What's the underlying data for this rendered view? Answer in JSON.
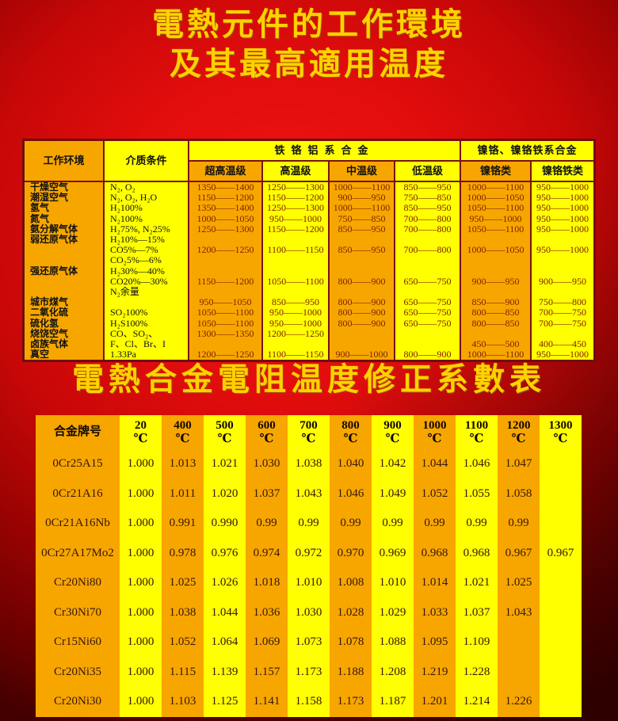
{
  "titles": {
    "line1": "電熱元件的工作環境",
    "line2": "及其最高適用温度",
    "second": "電熱合金電阻温度修正系數表"
  },
  "colors": {
    "background_red": "#d40c0c",
    "cell_orange": "#f7a600",
    "cell_yellow": "#ffff00",
    "border_maroon": "#7a1212",
    "value_text": "#7e2300",
    "title_gold": "#ffd200"
  },
  "env_table": {
    "header": {
      "work_env": "工作环境",
      "medium": "介质条件",
      "group1": "铁铬铝系合金",
      "group2": "镍铬、镍铬铁系合金",
      "subheaders": [
        "超高温级",
        "高温级",
        "中温级",
        "低温级",
        "镍铬类",
        "镍铬铁类"
      ]
    },
    "rows": [
      {
        "env": "干燥空气",
        "medium": [
          "N₂, O₂"
        ],
        "values": [
          "1350——1400",
          "1250——1300",
          "1000——1100",
          "850——950",
          "1000——1100",
          "950——1000"
        ]
      },
      {
        "env": "潮湿空气",
        "medium": [
          "N₂, O₂, H₂O"
        ],
        "values": [
          "1150——1200",
          "1150——1200",
          "900——950",
          "750——850",
          "1000——1050",
          "950——1000"
        ]
      },
      {
        "env": "氢气",
        "medium": [
          "H₂100%"
        ],
        "values": [
          "1350——1400",
          "1250——1300",
          "1000——1100",
          "850——950",
          "1050——1100",
          "950——1000"
        ]
      },
      {
        "env": "氮气",
        "medium": [
          "N₂100%"
        ],
        "values": [
          "1000——1050",
          "950——1000",
          "750——850",
          "700——800",
          "950——1000",
          "950——1000"
        ]
      },
      {
        "env": "氨分解气体",
        "medium": [
          "H₂75%, N₂25%"
        ],
        "values": [
          "1250——1300",
          "1150——1200",
          "850——950",
          "700——800",
          "1050——1100",
          "950——1000"
        ]
      },
      {
        "env": "弱还原气体",
        "medium": [
          "H₂10%—15%",
          "CO5%—7%"
        ],
        "values": [
          "1200——1250",
          "1100——1150",
          "850——950",
          "700——800",
          "1000——1050",
          "950——1000"
        ]
      },
      {
        "env": "强还原气体",
        "medium": [
          "CO₂5%—6%",
          "H₂30%—40%",
          "CO20%—30%",
          "N₂余量"
        ],
        "values": [
          "1150——1200",
          "1050——1100",
          "800——900",
          "650——750",
          "900——950",
          "900——950"
        ]
      },
      {
        "env": "城市煤气",
        "medium": [
          ""
        ],
        "values": [
          "950——1050",
          "850——950",
          "800——900",
          "650——750",
          "850——900",
          "750——800"
        ]
      },
      {
        "env": "二氧化硫",
        "medium": [
          "SO₂100%"
        ],
        "values": [
          "1050——1100",
          "950——1000",
          "800——900",
          "650——750",
          "800——850",
          "700——750"
        ]
      },
      {
        "env": "硫化氢",
        "medium": [
          "H₂S100%"
        ],
        "values": [
          "1050——1100",
          "950——1000",
          "800——900",
          "650——750",
          "800——850",
          "700——750"
        ]
      },
      {
        "env": "烧饶空气",
        "medium": [
          "CO、SO₂、Cl₂……"
        ],
        "values": [
          "1300——1350",
          "1200——1250",
          "",
          "",
          "",
          ""
        ]
      },
      {
        "env": "卤族气体",
        "medium": [
          "F、Cl、Br、I"
        ],
        "values": [
          "",
          "",
          "",
          "",
          "450——500",
          "400——450"
        ]
      },
      {
        "env": "真空",
        "medium": [
          "1.33Pa"
        ],
        "values": [
          "1200——1250",
          "1100——1150",
          "900——1000",
          "800——900",
          "1000——1100",
          "950——1000"
        ]
      }
    ]
  },
  "coeff_table": {
    "alloy_header": "合金牌号",
    "deg_symbol": "℃",
    "temps": [
      "20",
      "400",
      "500",
      "600",
      "700",
      "800",
      "900",
      "1000",
      "1100",
      "1200",
      "1300"
    ],
    "rows": [
      {
        "alloy": "0Cr25A15",
        "values": [
          "1.000",
          "1.013",
          "1.021",
          "1.030",
          "1.038",
          "1.040",
          "1.042",
          "1.044",
          "1.046",
          "1.047",
          ""
        ]
      },
      {
        "alloy": "0Cr21A16",
        "values": [
          "1.000",
          "1.011",
          "1.020",
          "1.037",
          "1.043",
          "1.046",
          "1.049",
          "1.052",
          "1.055",
          "1.058",
          ""
        ]
      },
      {
        "alloy": "0Cr21A16Nb",
        "values": [
          "1.000",
          "0.991",
          "0.990",
          "0.99",
          "0.99",
          "0.99",
          "0.99",
          "0.99",
          "0.99",
          "0.99",
          ""
        ]
      },
      {
        "alloy": "0Cr27A17Mo2",
        "values": [
          "1.000",
          "0.978",
          "0.976",
          "0.974",
          "0.972",
          "0.970",
          "0.969",
          "0.968",
          "0.968",
          "0.967",
          "0.967"
        ]
      },
      {
        "alloy": "Cr20Ni80",
        "values": [
          "1.000",
          "1.025",
          "1.026",
          "1.018",
          "1.010",
          "1.008",
          "1.010",
          "1.014",
          "1.021",
          "1.025",
          ""
        ]
      },
      {
        "alloy": "Cr30Ni70",
        "values": [
          "1.000",
          "1.038",
          "1.044",
          "1.036",
          "1.030",
          "1.028",
          "1.029",
          "1.033",
          "1.037",
          "1.043",
          ""
        ]
      },
      {
        "alloy": "Cr15Ni60",
        "values": [
          "1.000",
          "1.052",
          "1.064",
          "1.069",
          "1.073",
          "1.078",
          "1.088",
          "1.095",
          "1.109",
          "",
          ""
        ]
      },
      {
        "alloy": "Cr20Ni35",
        "values": [
          "1.000",
          "1.115",
          "1.139",
          "1.157",
          "1.173",
          "1.188",
          "1.208",
          "1.219",
          "1.228",
          "",
          ""
        ]
      },
      {
        "alloy": "Cr20Ni30",
        "values": [
          "1.000",
          "1.103",
          "1.125",
          "1.141",
          "1.158",
          "1.173",
          "1.187",
          "1.201",
          "1.214",
          "1.226",
          ""
        ]
      }
    ]
  }
}
